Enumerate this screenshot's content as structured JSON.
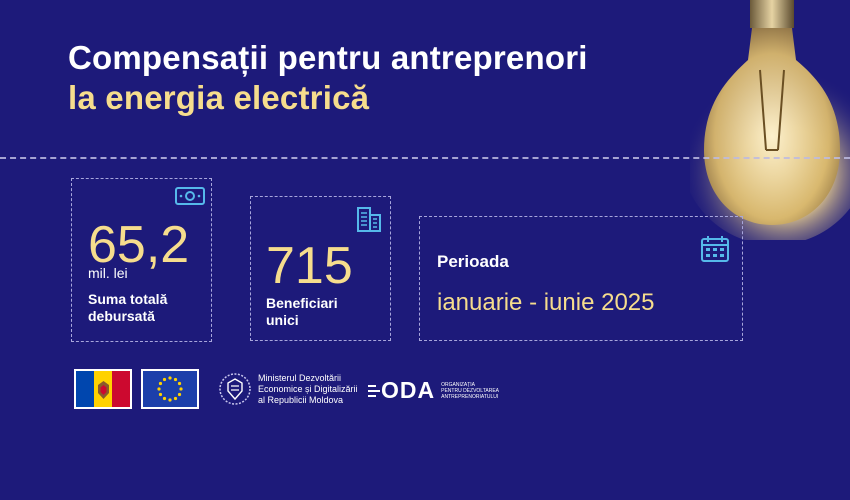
{
  "header": {
    "title_line1": "Compensații pentru antreprenori",
    "title_line2": "la energia electrică"
  },
  "stats": {
    "amount": {
      "value": "65,2",
      "unit": "mil. lei",
      "label_line1": "Suma totală",
      "label_line2": "debursată",
      "icon": "banknote-icon"
    },
    "beneficiaries": {
      "value": "715",
      "label_line1": "Beneficiari",
      "label_line2": "unici",
      "icon": "building-icon"
    },
    "period": {
      "label": "Perioada",
      "value": "ianuarie - iunie 2025",
      "icon": "calendar-icon"
    }
  },
  "footer": {
    "ministry_line1": "Ministerul Dezvoltării",
    "ministry_line2": "Economice și Digitalizării",
    "ministry_line3": "al Republicii Moldova",
    "oda_name": "ODA",
    "oda_line1": "Organizația",
    "oda_line2": "pentru Dezvoltarea",
    "oda_line3": "Antreprenoriatului"
  },
  "colors": {
    "background": "#1d1a7a",
    "accent_yellow": "#f6dd8d",
    "moldova_blue": "#0046ae",
    "moldova_yellow": "#ffd200",
    "moldova_red": "#cc092f",
    "eu_blue": "#1c3faa"
  }
}
